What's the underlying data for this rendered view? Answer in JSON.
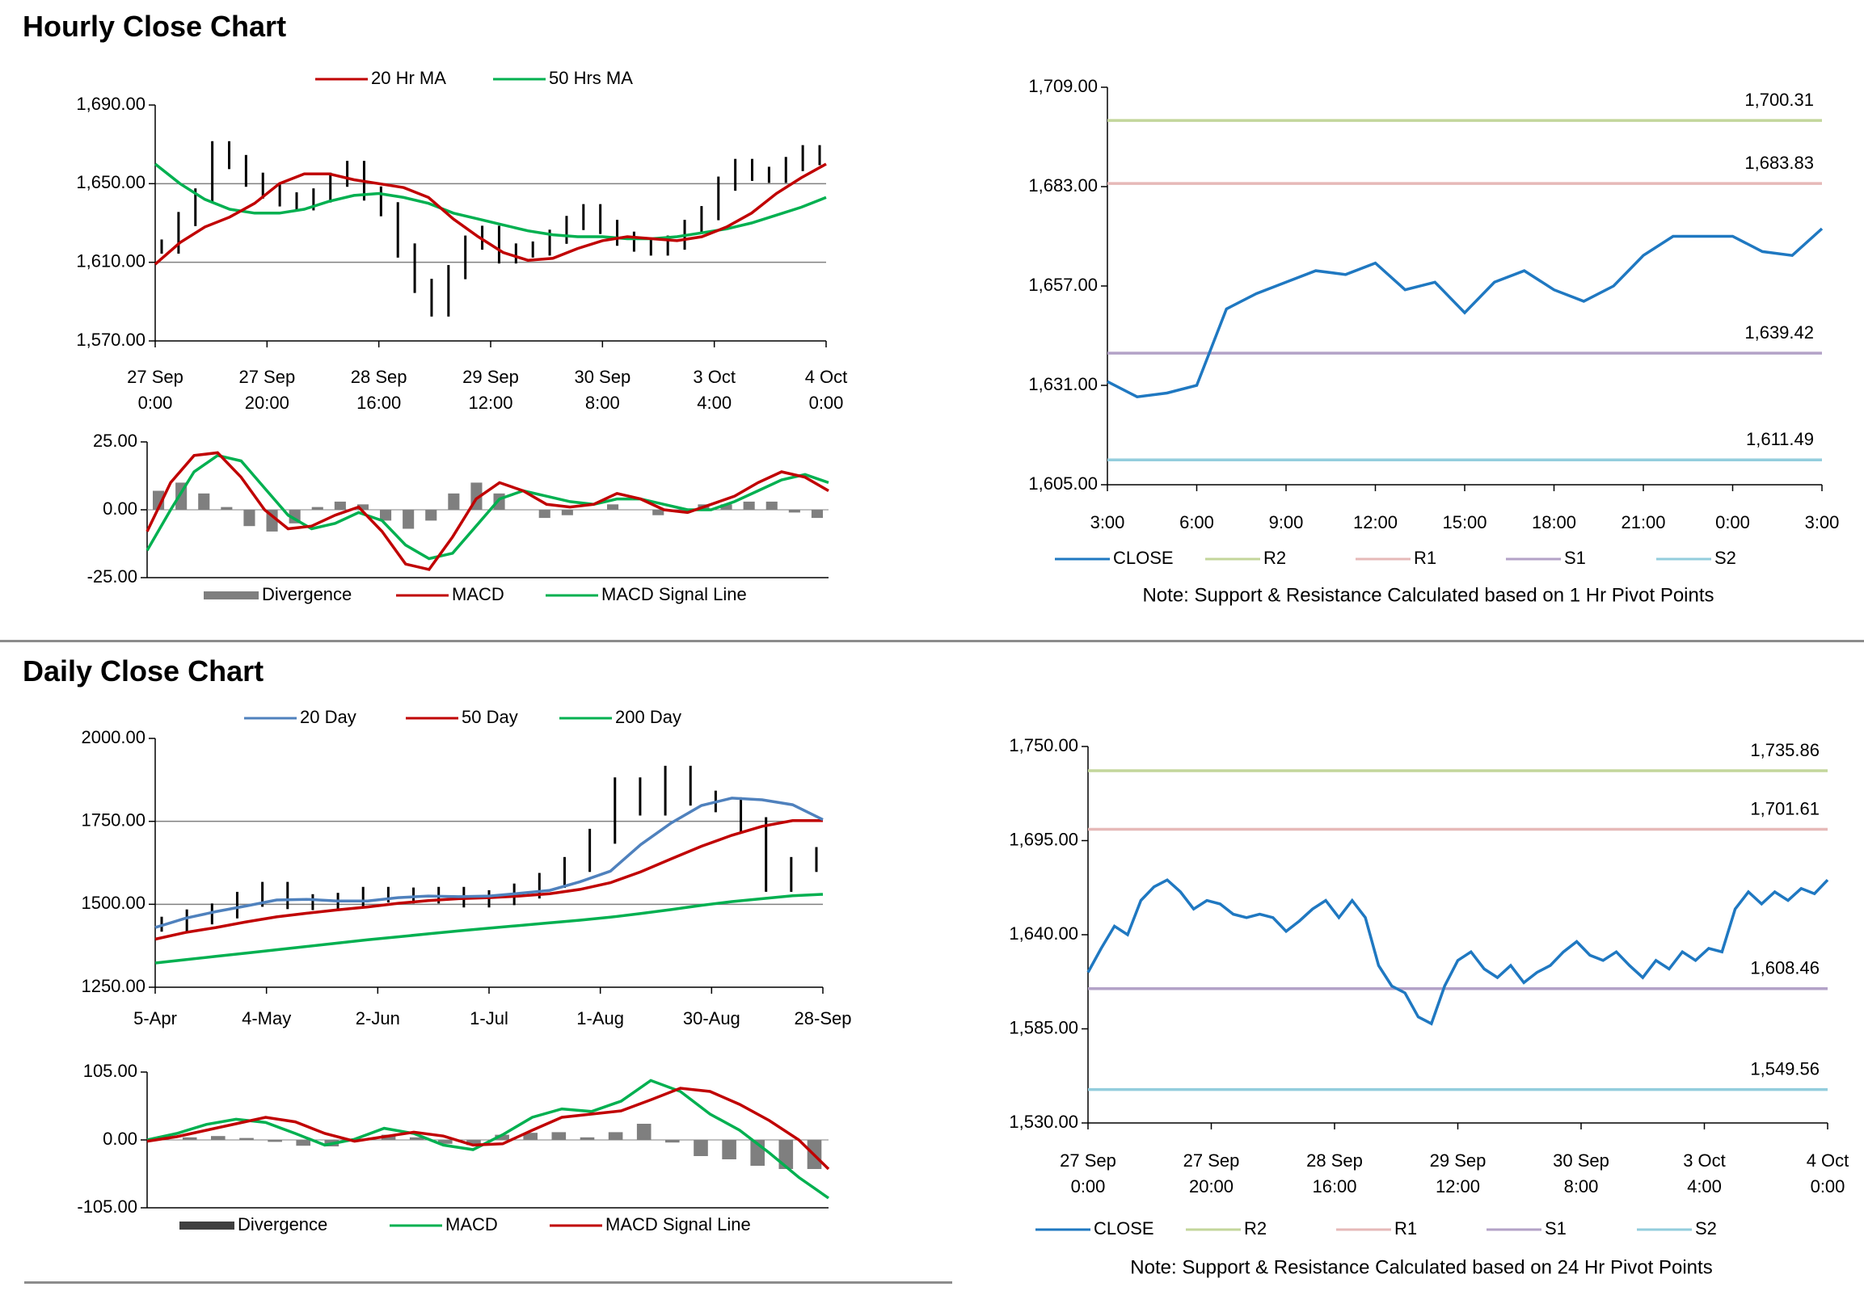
{
  "sections": {
    "hourly_title": "Hourly Close Chart",
    "daily_title": "Daily Close Chart"
  },
  "colors": {
    "ma_red": "#c00000",
    "ma_green": "#00b050",
    "ma_blue": "#4f81bd",
    "close_blue": "#1f78c1",
    "r2": "#c3d69b",
    "r1": "#e6b9b8",
    "s1": "#b3a2c7",
    "s2": "#93cddd",
    "divergence": "#7f7f7f",
    "grid": "#808080"
  },
  "chart_data": [
    {
      "id": "hourly_price",
      "type": "line",
      "title": "",
      "legend": [
        "20 Hr MA",
        "50 Hrs MA"
      ],
      "legend_position": "top",
      "ylim": [
        1570,
        1690
      ],
      "y_ticks": [
        "1,690.00",
        "1,650.00",
        "1,610.00",
        "1,570.00"
      ],
      "y_tick_values": [
        1690,
        1650,
        1610,
        1570
      ],
      "x_tick_labels": [
        [
          "27 Sep",
          "0:00"
        ],
        [
          "27 Sep",
          "20:00"
        ],
        [
          "28 Sep",
          "16:00"
        ],
        [
          "29 Sep",
          "12:00"
        ],
        [
          "30 Sep",
          "8:00"
        ],
        [
          "3 Oct",
          "4:00"
        ],
        [
          "4 Oct",
          "0:00"
        ]
      ],
      "series": [
        {
          "name": "20 Hr MA",
          "values": [
            1609,
            1620,
            1628,
            1633,
            1640,
            1650,
            1655,
            1655,
            1652,
            1650,
            1648,
            1643,
            1632,
            1623,
            1615,
            1611,
            1612,
            1617,
            1621,
            1623,
            1622,
            1621,
            1623,
            1628,
            1635,
            1645,
            1653,
            1660
          ]
        },
        {
          "name": "50 Hrs MA",
          "values": [
            1660,
            1650,
            1642,
            1637,
            1635,
            1635,
            1637,
            1641,
            1644,
            1645,
            1643,
            1640,
            1635,
            1632,
            1629,
            1626,
            1624,
            1623,
            1623,
            1622,
            1622,
            1623,
            1625,
            1627,
            1630,
            1634,
            1638,
            1643
          ]
        },
        {
          "name": "Close",
          "values": [
            1618,
            1632,
            1644,
            1668,
            1661,
            1652,
            1646,
            1642,
            1640,
            1644,
            1652,
            1658,
            1645,
            1637,
            1616,
            1598,
            1586,
            1605,
            1620,
            1625,
            1613,
            1616,
            1617,
            1623,
            1630,
            1636,
            1628,
            1622,
            1619,
            1617,
            1620,
            1628,
            1635,
            1650,
            1659,
            1655,
            1654,
            1660,
            1666,
            1663
          ]
        }
      ]
    },
    {
      "id": "hourly_macd",
      "type": "line",
      "title": "",
      "legend": [
        "Divergence",
        "MACD",
        "MACD Signal Line"
      ],
      "legend_position": "bottom",
      "ylim": [
        -25,
        25
      ],
      "y_ticks": [
        "25.00",
        "0.00",
        "-25.00"
      ],
      "y_tick_values": [
        25,
        0,
        -25
      ],
      "series": [
        {
          "name": "MACD",
          "values": [
            -8,
            10,
            20,
            21,
            12,
            0,
            -7,
            -6,
            -2,
            1,
            -8,
            -20,
            -22,
            -10,
            4,
            10,
            7,
            2,
            1,
            2,
            6,
            4,
            0,
            -1,
            2,
            5,
            10,
            14,
            12,
            7
          ]
        },
        {
          "name": "MACD Signal Line",
          "values": [
            -15,
            0,
            14,
            20,
            18,
            8,
            -2,
            -7,
            -5,
            -1,
            -4,
            -13,
            -18,
            -16,
            -6,
            4,
            7,
            5,
            3,
            2,
            4,
            4,
            2,
            0,
            0,
            3,
            7,
            11,
            13,
            10
          ]
        },
        {
          "name": "Divergence",
          "values": [
            7,
            10,
            6,
            1,
            -6,
            -8,
            -5,
            1,
            3,
            2,
            -4,
            -7,
            -4,
            6,
            10,
            6,
            0,
            -3,
            -2,
            0,
            2,
            0,
            -2,
            -1,
            2,
            2,
            3,
            3,
            -1,
            -3
          ]
        }
      ]
    },
    {
      "id": "hourly_pivot",
      "type": "line",
      "title": "",
      "legend": [
        "CLOSE",
        "R2",
        "R1",
        "S1",
        "S2"
      ],
      "legend_position": "bottom",
      "note": "Note: Support & Resistance Calculated based on 1 Hr Pivot Points",
      "ylim": [
        1605,
        1709
      ],
      "y_ticks": [
        "1,709.00",
        "1,683.00",
        "1,657.00",
        "1,631.00",
        "1,605.00"
      ],
      "y_tick_values": [
        1709,
        1683,
        1657,
        1631,
        1605
      ],
      "x_tick_labels": [
        "3:00",
        "6:00",
        "9:00",
        "12:00",
        "15:00",
        "18:00",
        "21:00",
        "0:00",
        "3:00"
      ],
      "levels": [
        {
          "name": "R2",
          "value": 1700.31,
          "label": "1,700.31"
        },
        {
          "name": "R1",
          "value": 1683.83,
          "label": "1,683.83"
        },
        {
          "name": "S1",
          "value": 1639.42,
          "label": "1,639.42"
        },
        {
          "name": "S2",
          "value": 1611.49,
          "label": "1,611.49"
        }
      ],
      "series": [
        {
          "name": "CLOSE",
          "values": [
            1632,
            1628,
            1629,
            1631,
            1651,
            1655,
            1658,
            1661,
            1660,
            1663,
            1656,
            1658,
            1650,
            1658,
            1661,
            1656,
            1653,
            1657,
            1665,
            1670,
            1670,
            1670,
            1666,
            1665,
            1672
          ]
        }
      ]
    },
    {
      "id": "daily_price",
      "type": "line",
      "title": "",
      "legend": [
        "20 Day",
        "50 Day",
        "200 Day"
      ],
      "legend_position": "top",
      "ylim": [
        1250,
        2000
      ],
      "y_ticks": [
        "2000.00",
        "1750.00",
        "1500.00",
        "1250.00"
      ],
      "y_tick_values": [
        2000,
        1750,
        1500,
        1250
      ],
      "x_tick_labels": [
        "5-Apr",
        "4-May",
        "2-Jun",
        "1-Jul",
        "1-Aug",
        "30-Aug",
        "28-Sep"
      ],
      "series": [
        {
          "name": "20 Day",
          "values": [
            1430,
            1458,
            1478,
            1495,
            1513,
            1515,
            1510,
            1510,
            1520,
            1525,
            1523,
            1525,
            1533,
            1542,
            1568,
            1600,
            1680,
            1745,
            1798,
            1820,
            1815,
            1800,
            1755
          ]
        },
        {
          "name": "50 Day",
          "values": [
            1395,
            1415,
            1430,
            1447,
            1462,
            1473,
            1483,
            1492,
            1503,
            1511,
            1517,
            1520,
            1525,
            1532,
            1545,
            1565,
            1598,
            1637,
            1675,
            1708,
            1735,
            1752,
            1752
          ]
        },
        {
          "name": "200 Day",
          "values": [
            1323,
            1333,
            1343,
            1353,
            1363,
            1373,
            1383,
            1393,
            1402,
            1411,
            1420,
            1428,
            1436,
            1444,
            1452,
            1461,
            1472,
            1484,
            1497,
            1508,
            1517,
            1526,
            1530
          ]
        },
        {
          "name": "Close",
          "values": [
            1440,
            1462,
            1480,
            1515,
            1545,
            1508,
            1505,
            1512,
            1530,
            1528,
            1525,
            1530,
            1513,
            1520,
            1540,
            1572,
            1620,
            1705,
            1860,
            1790,
            1895,
            1820,
            1800,
            1740,
            1560,
            1620,
            1650
          ]
        }
      ]
    },
    {
      "id": "daily_macd",
      "type": "line",
      "title": "",
      "legend": [
        "Divergence",
        "MACD",
        "MACD Signal Line"
      ],
      "legend_position": "bottom",
      "ylim": [
        -105,
        105
      ],
      "y_ticks": [
        "105.00",
        "0.00",
        "-105.00"
      ],
      "y_tick_values": [
        105,
        0,
        -105
      ],
      "series": [
        {
          "name": "MACD",
          "values": [
            0,
            10,
            24,
            32,
            27,
            10,
            -8,
            1,
            18,
            10,
            -8,
            -15,
            8,
            35,
            48,
            44,
            60,
            92,
            75,
            40,
            15,
            -20,
            -58,
            -90
          ]
        },
        {
          "name": "MACD Signal Line",
          "values": [
            -2,
            5,
            15,
            25,
            35,
            28,
            10,
            -2,
            5,
            12,
            6,
            -8,
            -6,
            15,
            35,
            40,
            45,
            62,
            80,
            75,
            55,
            30,
            0,
            -45
          ]
        },
        {
          "name": "Divergence",
          "values": [
            2,
            4,
            6,
            3,
            -3,
            -9,
            -10,
            2,
            8,
            4,
            -6,
            -8,
            8,
            11,
            12,
            4,
            12,
            25,
            -4,
            -25,
            -30,
            -40,
            -45,
            -45
          ]
        }
      ]
    },
    {
      "id": "daily_pivot",
      "type": "line",
      "title": "",
      "legend": [
        "CLOSE",
        "R2",
        "R1",
        "S1",
        "S2"
      ],
      "legend_position": "bottom",
      "note": "Note: Support & Resistance Calculated based on 24 Hr Pivot Points",
      "ylim": [
        1530,
        1750
      ],
      "y_ticks": [
        "1,750.00",
        "1,695.00",
        "1,640.00",
        "1,585.00",
        "1,530.00"
      ],
      "y_tick_values": [
        1750,
        1695,
        1640,
        1585,
        1530
      ],
      "x_tick_labels": [
        [
          "27 Sep",
          "0:00"
        ],
        [
          "27 Sep",
          "20:00"
        ],
        [
          "28 Sep",
          "16:00"
        ],
        [
          "29 Sep",
          "12:00"
        ],
        [
          "30 Sep",
          "8:00"
        ],
        [
          "3 Oct",
          "4:00"
        ],
        [
          "4 Oct",
          "0:00"
        ]
      ],
      "levels": [
        {
          "name": "R2",
          "value": 1735.86,
          "label": "1,735.86"
        },
        {
          "name": "R1",
          "value": 1701.61,
          "label": "1,701.61"
        },
        {
          "name": "S1",
          "value": 1608.46,
          "label": "1,608.46"
        },
        {
          "name": "S2",
          "value": 1549.56,
          "label": "1,549.56"
        }
      ],
      "series": [
        {
          "name": "CLOSE",
          "values": [
            1618,
            1632,
            1645,
            1640,
            1660,
            1668,
            1672,
            1665,
            1655,
            1660,
            1658,
            1652,
            1650,
            1652,
            1650,
            1642,
            1648,
            1655,
            1660,
            1650,
            1660,
            1650,
            1622,
            1610,
            1606,
            1592,
            1588,
            1610,
            1625,
            1630,
            1620,
            1615,
            1622,
            1612,
            1618,
            1622,
            1630,
            1636,
            1628,
            1625,
            1630,
            1622,
            1615,
            1625,
            1620,
            1630,
            1625,
            1632,
            1630,
            1655,
            1665,
            1658,
            1665,
            1660,
            1667,
            1664,
            1672
          ]
        }
      ]
    }
  ]
}
